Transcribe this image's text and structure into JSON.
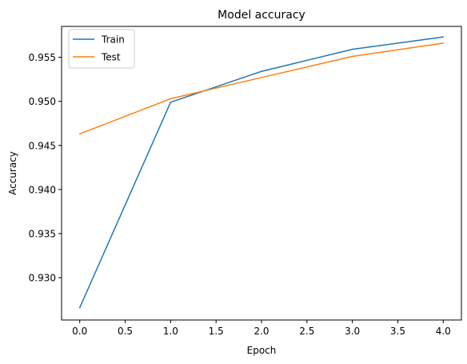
{
  "chart_data": {
    "type": "line",
    "title": "Model accuracy",
    "xlabel": "Epoch",
    "ylabel": "Accuracy",
    "xlim": [
      -0.2,
      4.2
    ],
    "ylim": [
      0.9252,
      0.9585
    ],
    "xticks": [
      0.0,
      0.5,
      1.0,
      1.5,
      2.0,
      2.5,
      3.0,
      3.5,
      4.0
    ],
    "xtick_labels": [
      "0.0",
      "0.5",
      "1.0",
      "1.5",
      "2.0",
      "2.5",
      "3.0",
      "3.5",
      "4.0"
    ],
    "yticks": [
      0.93,
      0.935,
      0.94,
      0.945,
      0.95,
      0.955
    ],
    "ytick_labels": [
      "0.930",
      "0.935",
      "0.940",
      "0.945",
      "0.950",
      "0.955"
    ],
    "grid": false,
    "legend_position": "upper-left",
    "x": [
      0,
      1,
      2,
      3,
      4
    ],
    "series": [
      {
        "name": "Train",
        "color": "#1f77b4",
        "values": [
          0.9266,
          0.9499,
          0.9534,
          0.9559,
          0.9573
        ]
      },
      {
        "name": "Test",
        "color": "#ff7f0e",
        "values": [
          0.9463,
          0.9503,
          0.9527,
          0.9551,
          0.9566
        ]
      }
    ]
  }
}
